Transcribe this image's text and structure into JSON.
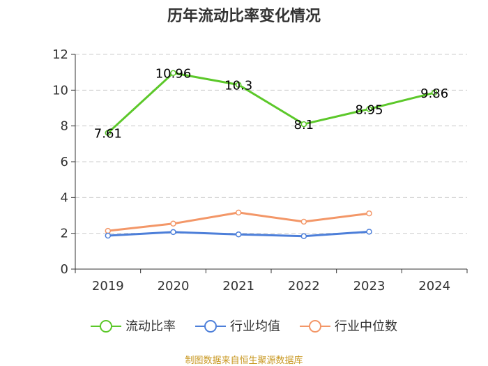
{
  "chart_data": {
    "type": "line",
    "title": "历年流动比率变化情况",
    "categories": [
      "2019",
      "2020",
      "2021",
      "2022",
      "2023",
      "2024"
    ],
    "ylim": [
      0,
      12
    ],
    "yticks": [
      0,
      2,
      4,
      6,
      8,
      10,
      12
    ],
    "grid": true,
    "legend_position": "bottom",
    "series": [
      {
        "name": "流动比率",
        "color": "#5cc82a",
        "values": [
          7.61,
          10.96,
          10.3,
          8.1,
          8.95,
          9.86
        ],
        "labels": [
          "7.61",
          "10.96",
          "10.3",
          "8.1",
          "8.95",
          "9.86"
        ],
        "show_labels": true
      },
      {
        "name": "行业均值",
        "color": "#4d7fd9",
        "values": [
          1.87,
          2.07,
          1.94,
          1.84,
          2.09,
          null
        ],
        "show_labels": false
      },
      {
        "name": "行业中位数",
        "color": "#f39768",
        "values": [
          2.14,
          2.54,
          3.16,
          2.65,
          3.11,
          null
        ],
        "show_labels": false
      }
    ]
  },
  "source_note": "制图数据来自恒生聚源数据库"
}
